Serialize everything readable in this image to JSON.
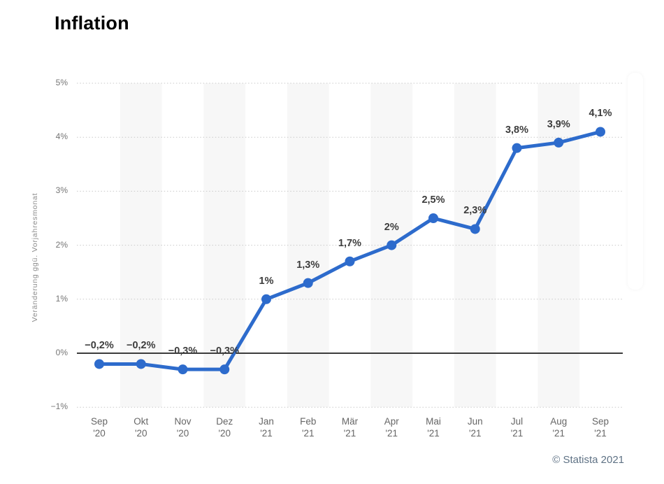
{
  "title": "Inflation",
  "y_axis": {
    "label": "Veränderung ggü. Vorjahresmonat"
  },
  "footer": {
    "credit": "© Statista 2021"
  },
  "colors": {
    "line": "#2d6bcc",
    "point": "#2d6bcc",
    "zero_axis": "#3c3c3c",
    "grid": "#c9c9c9",
    "stripe": "#f7f7f7",
    "axis_text": "#757575",
    "x_text": "#666666",
    "value_label": "#3d3d3d",
    "credit_text": "#5f7285",
    "title_text": "#000000"
  },
  "chart_data": {
    "type": "line",
    "title": "Inflation",
    "xlabel": "",
    "ylabel": "Veränderung ggü. Vorjahresmonat",
    "categories": [
      [
        "Sep",
        "'20"
      ],
      [
        "Okt",
        "'20"
      ],
      [
        "Nov",
        "'20"
      ],
      [
        "Dez",
        "'20"
      ],
      [
        "Jan",
        "'21"
      ],
      [
        "Feb",
        "'21"
      ],
      [
        "Mär",
        "'21"
      ],
      [
        "Apr",
        "'21"
      ],
      [
        "Mai",
        "'21"
      ],
      [
        "Jun",
        "'21"
      ],
      [
        "Jul",
        "'21"
      ],
      [
        "Aug",
        "'21"
      ],
      [
        "Sep",
        "'21"
      ]
    ],
    "values": [
      -0.2,
      -0.2,
      -0.3,
      -0.3,
      1,
      1.3,
      1.7,
      2,
      2.5,
      2.3,
      3.8,
      3.9,
      4.1
    ],
    "point_labels": [
      "−0,2%",
      "−0,2%",
      "−0,3%",
      "−0,3%",
      "1%",
      "1,3%",
      "1,7%",
      "2%",
      "2,5%",
      "2,3%",
      "3,8%",
      "3,9%",
      "4,1%"
    ],
    "ylim": [
      -1,
      5
    ],
    "yticks": [
      5,
      4,
      3,
      2,
      1,
      0,
      -1
    ],
    "ytick_labels": [
      "5%",
      "4%",
      "3%",
      "2%",
      "1%",
      "0%",
      "−1%"
    ],
    "grid": "horizontal-dotted",
    "legend": "none",
    "stripes": "alternating vertical month bands on Okt, Dez, Feb, Apr, Jun, Aug"
  }
}
